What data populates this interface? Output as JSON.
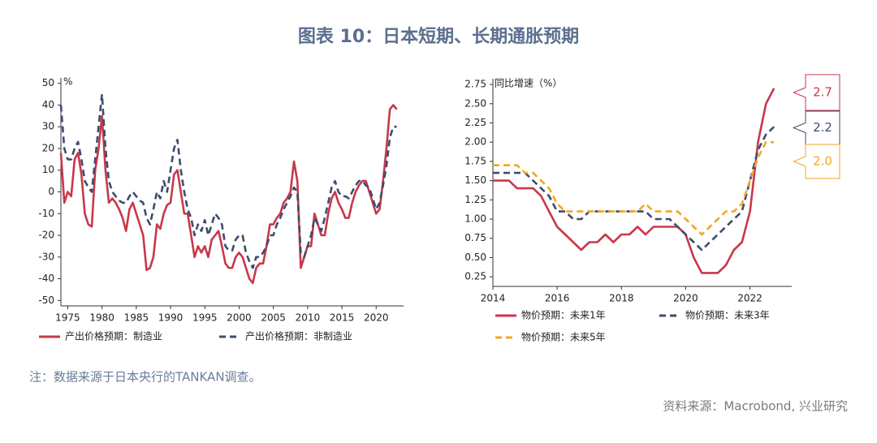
{
  "title": "图表 10：日本短期、长期通胀预期",
  "note": "注：数据来源于日本央行的TANKAN调查。",
  "source": "资料来源：Macrobond, 兴业研究",
  "chart_data": [
    {
      "type": "line",
      "y_label": "%",
      "xlim": [
        1974,
        2024
      ],
      "xticks": [
        1975,
        1980,
        1985,
        1990,
        1995,
        2000,
        2005,
        2010,
        2015,
        2020
      ],
      "ylim": [
        -52.5,
        52.5
      ],
      "yticks": [
        50,
        40,
        30,
        20,
        10,
        0,
        -10,
        -20,
        -30,
        -40,
        -50
      ],
      "x": [
        1974,
        1974.5,
        1975,
        1975.5,
        1976,
        1976.5,
        1977,
        1977.5,
        1978,
        1978.5,
        1979,
        1979.5,
        1980,
        1980.5,
        1981,
        1981.5,
        1982,
        1982.5,
        1983,
        1983.5,
        1984,
        1984.5,
        1985,
        1985.5,
        1986,
        1986.5,
        1987,
        1987.5,
        1988,
        1988.5,
        1989,
        1989.5,
        1990,
        1990.5,
        1991,
        1991.5,
        1992,
        1992.5,
        1993,
        1993.5,
        1994,
        1994.5,
        1995,
        1995.5,
        1996,
        1996.5,
        1997,
        1997.5,
        1998,
        1998.5,
        1999,
        1999.5,
        2000,
        2000.5,
        2001,
        2001.5,
        2002,
        2002.5,
        2003,
        2003.5,
        2004,
        2004.5,
        2005,
        2005.5,
        2006,
        2006.5,
        2007,
        2007.5,
        2008,
        2008.5,
        2009,
        2009.5,
        2010,
        2010.5,
        2011,
        2011.5,
        2012,
        2012.5,
        2013,
        2013.5,
        2014,
        2014.5,
        2015,
        2015.5,
        2016,
        2016.5,
        2017,
        2017.5,
        2018,
        2018.5,
        2019,
        2019.5,
        2020,
        2020.5,
        2021,
        2021.5,
        2022,
        2022.5,
        2023
      ],
      "series": [
        {
          "name": "产出价格预期：制造业",
          "color": "#c8384a",
          "dashed": false,
          "values": [
            18,
            -5,
            0,
            -2,
            15,
            18,
            8,
            -10,
            -15,
            -16,
            10,
            20,
            35,
            10,
            -5,
            -3,
            -5,
            -8,
            -12,
            -18,
            -8,
            -5,
            -10,
            -15,
            -20,
            -36,
            -35,
            -30,
            -15,
            -17,
            -10,
            -6,
            -5,
            8,
            10,
            0,
            -10,
            -10,
            -20,
            -30,
            -25,
            -28,
            -25,
            -30,
            -22,
            -20,
            -18,
            -25,
            -33,
            -35,
            -35,
            -30,
            -28,
            -30,
            -35,
            -40,
            -42,
            -35,
            -33,
            -33,
            -25,
            -15,
            -15,
            -12,
            -10,
            -5,
            -3,
            0,
            14,
            5,
            -35,
            -30,
            -25,
            -25,
            -10,
            -15,
            -20,
            -20,
            -10,
            -3,
            0,
            -5,
            -8,
            -12,
            -12,
            -5,
            0,
            3,
            5,
            5,
            0,
            -5,
            -10,
            -8,
            5,
            20,
            38,
            40,
            38
          ]
        },
        {
          "name": "产出价格预期：非制造业",
          "color": "#3d4d6b",
          "dashed": true,
          "values": [
            40,
            20,
            15,
            15,
            20,
            23,
            15,
            5,
            2,
            0,
            15,
            30,
            45,
            20,
            5,
            0,
            -2,
            -4,
            -5,
            -5,
            -2,
            0,
            -2,
            -4,
            -5,
            -12,
            -15,
            -8,
            0,
            -3,
            5,
            0,
            10,
            20,
            24,
            10,
            0,
            -8,
            -12,
            -20,
            -15,
            -18,
            -13,
            -20,
            -15,
            -10,
            -12,
            -15,
            -25,
            -27,
            -27,
            -22,
            -20,
            -20,
            -28,
            -32,
            -35,
            -30,
            -30,
            -28,
            -25,
            -20,
            -20,
            -15,
            -12,
            -8,
            -5,
            -2,
            2,
            0,
            -28,
            -30,
            -25,
            -20,
            -12,
            -15,
            -18,
            -12,
            -5,
            2,
            5,
            0,
            -2,
            -2,
            -3,
            0,
            3,
            5,
            5,
            3,
            2,
            -3,
            -8,
            -5,
            3,
            12,
            25,
            30,
            30
          ]
        }
      ]
    },
    {
      "type": "line",
      "y_label": "同比增速（%）",
      "xlim": [
        2014,
        2023.3
      ],
      "xticks": [
        2014,
        2016,
        2018,
        2020,
        2022
      ],
      "ylim": [
        0.125,
        2.825
      ],
      "yticks": [
        2.75,
        {
          "value": 2.5,
          "label": "2.50"
        },
        2.25,
        {
          "value": 2,
          "label": "2.00"
        },
        1.75,
        {
          "value": 1.5,
          "label": "1.50"
        },
        1.25,
        {
          "value": 1,
          "label": "1.00"
        },
        0.75,
        {
          "value": 0.5,
          "label": "0.50"
        },
        0.25
      ],
      "x": [
        2014,
        2014.25,
        2014.5,
        2014.75,
        2015,
        2015.25,
        2015.5,
        2015.75,
        2016,
        2016.25,
        2016.5,
        2016.75,
        2017,
        2017.25,
        2017.5,
        2017.75,
        2018,
        2018.25,
        2018.5,
        2018.75,
        2019,
        2019.25,
        2019.5,
        2019.75,
        2020,
        2020.25,
        2020.5,
        2020.75,
        2021,
        2021.25,
        2021.5,
        2021.75,
        2022,
        2022.25,
        2022.5,
        2022.75
      ],
      "series": [
        {
          "name": "物价预期：未来1年",
          "color": "#c8384a",
          "dashed": false,
          "end_label": "2.7",
          "values": [
            1.5,
            1.5,
            1.5,
            1.4,
            1.4,
            1.4,
            1.3,
            1.1,
            0.9,
            0.8,
            0.7,
            0.6,
            0.7,
            0.7,
            0.8,
            0.7,
            0.8,
            0.8,
            0.9,
            0.8,
            0.9,
            0.9,
            0.9,
            0.9,
            0.8,
            0.5,
            0.3,
            0.3,
            0.3,
            0.4,
            0.6,
            0.7,
            1.1,
            2.0,
            2.5,
            2.7
          ]
        },
        {
          "name": "物价预期：未来3年",
          "color": "#3d4d6b",
          "dashed": true,
          "end_label": "2.2",
          "values": [
            1.6,
            1.6,
            1.6,
            1.6,
            1.6,
            1.5,
            1.4,
            1.3,
            1.1,
            1.1,
            1.0,
            1.0,
            1.1,
            1.1,
            1.1,
            1.1,
            1.1,
            1.1,
            1.1,
            1.1,
            1.0,
            1.0,
            1.0,
            0.9,
            0.8,
            0.7,
            0.6,
            0.7,
            0.8,
            0.9,
            1.0,
            1.1,
            1.5,
            1.9,
            2.1,
            2.2
          ]
        },
        {
          "name": "物价预期：未来5年",
          "color": "#f5a623",
          "dashed": true,
          "end_label": "2.0",
          "values": [
            1.7,
            1.7,
            1.7,
            1.7,
            1.6,
            1.6,
            1.5,
            1.4,
            1.2,
            1.1,
            1.1,
            1.1,
            1.1,
            1.1,
            1.1,
            1.1,
            1.1,
            1.1,
            1.1,
            1.2,
            1.1,
            1.1,
            1.1,
            1.1,
            1.0,
            0.9,
            0.8,
            0.9,
            1.0,
            1.1,
            1.1,
            1.2,
            1.5,
            1.8,
            2.0,
            2.0
          ]
        }
      ]
    }
  ]
}
